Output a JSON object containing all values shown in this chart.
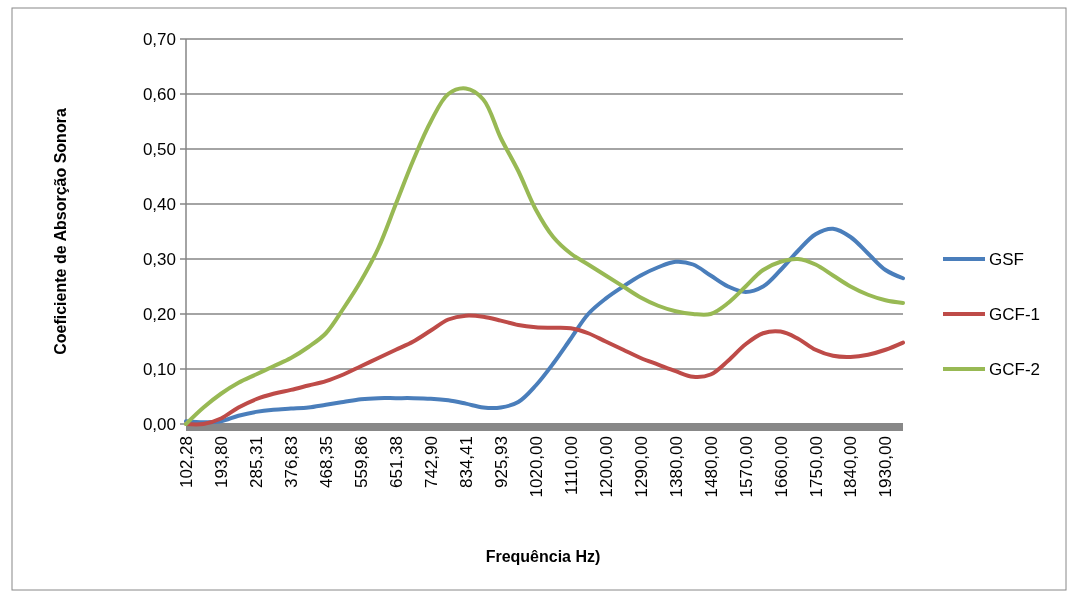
{
  "chart_data": {
    "type": "line",
    "xlabel": "Frequência Hz)",
    "ylabel": "Coeficiente de Absorção Sonora",
    "categories": [
      "102,28",
      null,
      "193,80",
      null,
      "285,31",
      null,
      "376,83",
      null,
      "468,35",
      null,
      "559,86",
      null,
      "651,38",
      null,
      "742,90",
      null,
      "834,41",
      null,
      "925,93",
      null,
      "1020,00",
      null,
      "1110,00",
      null,
      "1200,00",
      null,
      "1290,00",
      null,
      "1380,00",
      null,
      "1480,00",
      null,
      "1570,00",
      null,
      "1660,00",
      null,
      "1750,00",
      null,
      "1840,00",
      null,
      "1930,00",
      null
    ],
    "series": [
      {
        "name": "GSF",
        "color": "#4a7ebb",
        "values": [
          0.005,
          0.003,
          0.005,
          0.015,
          0.022,
          0.026,
          0.028,
          0.03,
          0.035,
          0.04,
          0.045,
          0.047,
          0.047,
          0.047,
          0.046,
          0.043,
          0.037,
          0.03,
          0.03,
          0.04,
          0.07,
          0.11,
          0.155,
          0.2,
          0.228,
          0.25,
          0.27,
          0.285,
          0.295,
          0.29,
          0.27,
          0.25,
          0.24,
          0.25,
          0.28,
          0.315,
          0.345,
          0.355,
          0.34,
          0.31,
          0.28,
          0.265
        ]
      },
      {
        "name": "GCF-1",
        "color": "#be4b48",
        "values": [
          0.0,
          0.0,
          0.01,
          0.03,
          0.045,
          0.055,
          0.062,
          0.07,
          0.078,
          0.09,
          0.105,
          0.12,
          0.135,
          0.15,
          0.17,
          0.19,
          0.197,
          0.195,
          0.188,
          0.18,
          0.176,
          0.175,
          0.174,
          0.165,
          0.15,
          0.135,
          0.12,
          0.108,
          0.096,
          0.086,
          0.09,
          0.115,
          0.145,
          0.165,
          0.168,
          0.155,
          0.135,
          0.124,
          0.122,
          0.126,
          0.135,
          0.148
        ]
      },
      {
        "name": "GCF-2",
        "color": "#98b954",
        "values": [
          0.0,
          0.03,
          0.055,
          0.075,
          0.09,
          0.105,
          0.12,
          0.14,
          0.165,
          0.21,
          0.26,
          0.32,
          0.4,
          0.48,
          0.55,
          0.6,
          0.61,
          0.59,
          0.52,
          0.46,
          0.39,
          0.34,
          0.31,
          0.29,
          0.27,
          0.25,
          0.23,
          0.215,
          0.205,
          0.2,
          0.2,
          0.22,
          0.25,
          0.28,
          0.295,
          0.3,
          0.29,
          0.27,
          0.25,
          0.235,
          0.225,
          0.22
        ]
      }
    ],
    "ylim": [
      0,
      0.7
    ],
    "yticks": [
      {
        "value": 0,
        "label": "0,00"
      },
      {
        "value": 0.1,
        "label": "0,10"
      },
      {
        "value": 0.2,
        "label": "0,20"
      },
      {
        "value": 0.3,
        "label": "0,30"
      },
      {
        "value": 0.4,
        "label": "0,40"
      },
      {
        "value": 0.5,
        "label": "0,50"
      },
      {
        "value": 0.6,
        "label": "0,60"
      },
      {
        "value": 0.7,
        "label": "0,70"
      }
    ],
    "grid": "y",
    "legend": "right",
    "marker": "none",
    "line_style": "solid"
  }
}
